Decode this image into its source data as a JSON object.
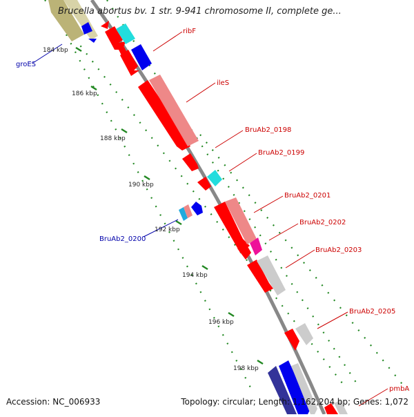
{
  "title": "Brucella abortus bv. 1 str. 9-941 chromosome II, complete ge...",
  "footer": {
    "accession": "Accession: NC_006933",
    "topology": "Topology: circular; Length: 1,162,204 bp; Genes: 1,072"
  },
  "ruler_ticks": [
    "184 kbp",
    "186 kbp",
    "188 kbp",
    "190 kbp",
    "192 kbp",
    "194 kbp",
    "196 kbp",
    "198 kbp"
  ],
  "gene_labels": {
    "reverse_strand": [
      "groES",
      "BruAb2_0200"
    ],
    "forward_strand": [
      "ribF",
      "ileS",
      "BruAb2_0198",
      "BruAb2_0199",
      "BruAb2_0201",
      "BruAb2_0202",
      "BruAb2_0203",
      "BruAb2_0205",
      "pmbA"
    ]
  },
  "colors": {
    "forward_label": "#cc0000",
    "reverse_label": "#0000aa",
    "backbone": "#888888",
    "ruler_dots": "#228822",
    "cds": "#ff0000",
    "cds_light": "#ee8888",
    "blue": "#0000ee",
    "cyan": "#22dddd",
    "grey": "#cccccc",
    "khaki": "#bbb377",
    "navy": "#333399",
    "magenta": "#ee1199"
  }
}
